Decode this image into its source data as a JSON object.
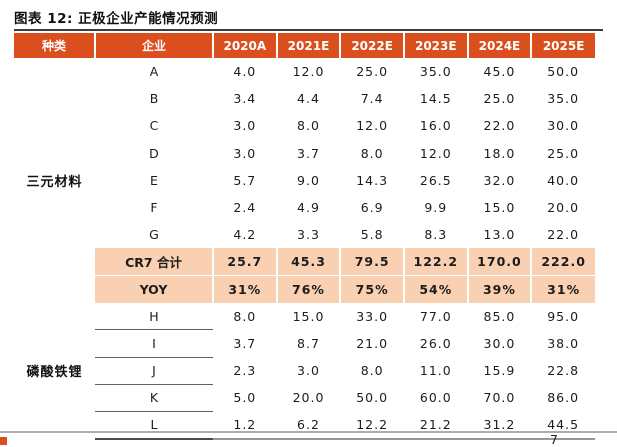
{
  "report": {
    "figure_title": "图表 12: 正极企业产能情况预测",
    "page_number": "7"
  },
  "colors": {
    "accent_orange": "#DB4F1E",
    "highlight_peach": "#F9D0B2",
    "title_rule": "#3d3d3d"
  },
  "table": {
    "columns": [
      "种类",
      "企业",
      "2020A",
      "2021E",
      "2022E",
      "2023E",
      "2024E",
      "2025E"
    ],
    "groups": [
      {
        "category": "三元材料",
        "row_separators": false,
        "rows": [
          {
            "company": "A",
            "highlight": false,
            "values": [
              "4.0",
              "12.0",
              "25.0",
              "35.0",
              "45.0",
              "50.0"
            ]
          },
          {
            "company": "B",
            "highlight": false,
            "values": [
              "3.4",
              "4.4",
              "7.4",
              "14.5",
              "25.0",
              "35.0"
            ]
          },
          {
            "company": "C",
            "highlight": false,
            "values": [
              "3.0",
              "8.0",
              "12.0",
              "16.0",
              "22.0",
              "30.0"
            ]
          },
          {
            "company": "D",
            "highlight": false,
            "values": [
              "3.0",
              "3.7",
              "8.0",
              "12.0",
              "18.0",
              "25.0"
            ]
          },
          {
            "company": "E",
            "highlight": false,
            "values": [
              "5.7",
              "9.0",
              "14.3",
              "26.5",
              "32.0",
              "40.0"
            ]
          },
          {
            "company": "F",
            "highlight": false,
            "values": [
              "2.4",
              "4.9",
              "6.9",
              "9.9",
              "15.0",
              "20.0"
            ]
          },
          {
            "company": "G",
            "highlight": false,
            "values": [
              "4.2",
              "3.3",
              "5.8",
              "8.3",
              "13.0",
              "22.0"
            ]
          },
          {
            "company": "CR7 合计",
            "highlight": true,
            "values": [
              "25.7",
              "45.3",
              "79.5",
              "122.2",
              "170.0",
              "222.0"
            ]
          },
          {
            "company": "YOY",
            "highlight": true,
            "values": [
              "31%",
              "76%",
              "75%",
              "54%",
              "39%",
              "31%"
            ]
          }
        ]
      },
      {
        "category": "磷酸铁锂",
        "row_separators": true,
        "rows": [
          {
            "company": "H",
            "highlight": false,
            "values": [
              "8.0",
              "15.0",
              "33.0",
              "77.0",
              "85.0",
              "95.0"
            ]
          },
          {
            "company": "I",
            "highlight": false,
            "values": [
              "3.7",
              "8.7",
              "21.0",
              "26.0",
              "30.0",
              "38.0"
            ]
          },
          {
            "company": "J",
            "highlight": false,
            "values": [
              "2.3",
              "3.0",
              "8.0",
              "11.0",
              "15.9",
              "22.8"
            ]
          },
          {
            "company": "K",
            "highlight": false,
            "values": [
              "5.0",
              "20.0",
              "50.0",
              "60.0",
              "70.0",
              "86.0"
            ]
          },
          {
            "company": "L",
            "highlight": false,
            "values": [
              "1.2",
              "6.2",
              "12.2",
              "21.2",
              "31.2",
              "44.5"
            ]
          }
        ]
      }
    ]
  }
}
